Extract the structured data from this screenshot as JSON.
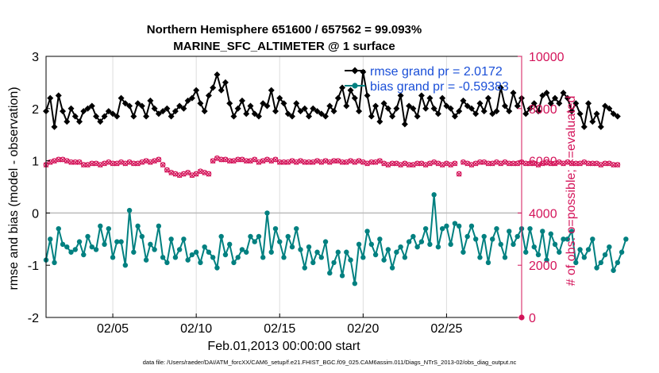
{
  "chart_data": {
    "type": "line",
    "title": "Northern Hemisphere 651600 / 657562 = 99.093%",
    "subtitle": "MARINE_SFC_ALTIMETER @ 1 surface",
    "xlabel": "Feb.01,2013 00:00:00 start",
    "ylabel": "rmse and bias (model - observation)",
    "y2label": "# of obs: o=possible; ×=evaluated",
    "xlim": [
      1,
      29.5
    ],
    "ylim": [
      -2,
      3
    ],
    "y2lim": [
      0,
      10000
    ],
    "x_ticks": [
      5,
      10,
      15,
      20,
      25
    ],
    "x_tick_labels": [
      "02/05",
      "02/10",
      "02/15",
      "02/20",
      "02/25"
    ],
    "y_ticks": [
      -2,
      -1,
      0,
      1,
      2,
      3
    ],
    "y_tick_labels": [
      "-2",
      "-1",
      "0",
      "1",
      "2",
      "3"
    ],
    "y2_ticks": [
      0,
      2000,
      4000,
      6000,
      8000,
      10000
    ],
    "y2_tick_labels": [
      "0",
      "2000",
      "4000",
      "6000",
      "8000",
      "10000"
    ],
    "grid": "vertical",
    "zero_line": 0,
    "legend_position": "top-right",
    "footer": "data file: /Users/raeder/DAI/ATM_forcXX/CAM6_setup/f.e21.FHIST_BGC.f09_025.CAM6assim.011/Diags_NTrS_2013-02/obs_diag_output.nc",
    "x_start": 1.0,
    "x_step": 0.25,
    "series": [
      {
        "name": "rmse",
        "legend": "rmse grand pr = 2.0172",
        "color": "#000000",
        "marker": "diamond",
        "axis": "left",
        "values": [
          1.95,
          2.2,
          1.65,
          2.25,
          1.95,
          1.75,
          2.0,
          1.85,
          1.75,
          1.95,
          2.0,
          2.05,
          1.85,
          1.75,
          1.85,
          1.95,
          1.9,
          1.85,
          2.2,
          2.1,
          2.05,
          1.85,
          2.1,
          2.05,
          1.85,
          2.15,
          2.0,
          1.9,
          1.95,
          2.0,
          1.85,
          1.95,
          2.05,
          2.0,
          2.15,
          2.2,
          2.35,
          2.1,
          1.95,
          2.25,
          2.4,
          2.65,
          2.35,
          2.5,
          2.1,
          1.85,
          2.0,
          2.15,
          1.9,
          2.05,
          1.9,
          1.85,
          2.1,
          2.05,
          2.35,
          1.95,
          2.2,
          2.1,
          1.9,
          1.85,
          2.1,
          1.95,
          2.0,
          1.85,
          2.0,
          1.95,
          1.9,
          1.85,
          2.05,
          1.95,
          2.2,
          2.4,
          2.05,
          2.35,
          2.2,
          1.95,
          2.7,
          2.25,
          1.85,
          2.05,
          1.75,
          2.1,
          2.0,
          1.85,
          2.0,
          2.25,
          1.7,
          2.05,
          2.0,
          1.85,
          2.25,
          2.0,
          2.2,
          2.0,
          1.9,
          2.2,
          2.05,
          2.0,
          1.85,
          1.95,
          2.15,
          2.05,
          2.0,
          1.9,
          2.1,
          1.95,
          2.2,
          1.9,
          1.95,
          2.4,
          2.05,
          1.95,
          2.3,
          2.05,
          2.2,
          1.9,
          2.0,
          2.1,
          1.95,
          2.25,
          2.3,
          2.1,
          2.2,
          2.1,
          2.3,
          2.2,
          1.95,
          2.1,
          1.9,
          1.65,
          2.1,
          1.75,
          1.9,
          1.65,
          2.05,
          2.0,
          1.9,
          1.85
        ]
      },
      {
        "name": "bias",
        "legend": "bias grand pr = -0.59383",
        "color": "#008080",
        "marker": "circle",
        "axis": "left",
        "values": [
          -0.9,
          -0.5,
          -0.95,
          -0.3,
          -0.6,
          -0.65,
          -0.75,
          -0.7,
          -0.55,
          -0.8,
          -0.45,
          -0.65,
          -0.7,
          -0.25,
          -0.6,
          -0.3,
          -0.85,
          -0.55,
          -0.55,
          -1.0,
          0.05,
          -0.75,
          -0.25,
          -0.45,
          -0.9,
          -0.6,
          -0.7,
          -0.25,
          -0.85,
          -0.95,
          -0.5,
          -0.85,
          -0.7,
          -0.5,
          -0.9,
          -0.8,
          -0.75,
          -0.95,
          -0.65,
          -0.75,
          -0.85,
          -1.05,
          -0.45,
          -0.8,
          -0.6,
          -0.95,
          -0.85,
          -0.7,
          -0.75,
          -0.45,
          -0.55,
          -0.45,
          -0.85,
          0.0,
          -0.75,
          -0.3,
          -0.55,
          -0.85,
          -0.45,
          -0.65,
          -0.3,
          -0.7,
          -1.05,
          -0.65,
          -0.95,
          -0.75,
          -0.85,
          -0.55,
          -1.15,
          -0.95,
          -0.75,
          -1.2,
          -0.75,
          -0.9,
          -1.35,
          -0.6,
          -0.85,
          -0.35,
          -0.6,
          -0.8,
          -0.5,
          -0.9,
          -0.7,
          -1.05,
          -0.75,
          -0.65,
          -0.85,
          -0.55,
          -0.45,
          -0.65,
          -0.55,
          -0.3,
          -0.6,
          0.35,
          -0.65,
          -0.3,
          -0.25,
          -0.6,
          -0.2,
          -0.25,
          -0.75,
          -0.45,
          -0.25,
          -0.5,
          -0.85,
          -0.45,
          -0.95,
          -0.5,
          -0.3,
          -0.6,
          -0.85,
          -0.35,
          -0.6,
          -0.45,
          -0.3,
          -0.75,
          -0.3,
          -0.65,
          -0.8,
          -0.35,
          -0.9,
          -0.4,
          -0.6,
          -0.75,
          -0.5,
          -0.5,
          -0.35,
          -0.95,
          -0.7,
          -0.85,
          -0.7,
          -0.5,
          -1.05,
          -0.95,
          -0.8,
          -0.65,
          -1.1,
          -0.95,
          -0.75,
          -0.5
        ]
      },
      {
        "name": "nposs",
        "legend": "",
        "color": "#d4145a",
        "marker": "circle-open",
        "axis": "right",
        "values": [
          5850,
          5950,
          6000,
          6050,
          6050,
          6000,
          5950,
          5950,
          5950,
          5850,
          5850,
          5900,
          5900,
          5850,
          5900,
          5950,
          5900,
          5900,
          5950,
          5900,
          5950,
          5900,
          5900,
          5950,
          6000,
          5950,
          6000,
          6050,
          5850,
          5650,
          5550,
          5500,
          5450,
          5500,
          5550,
          5450,
          5500,
          5600,
          5550,
          5500,
          6000,
          6100,
          6050,
          6050,
          6000,
          6000,
          6050,
          6050,
          6000,
          6000,
          6050,
          5950,
          6000,
          6050,
          6000,
          6050,
          5950,
          5950,
          5950,
          6000,
          5950,
          6000,
          5950,
          5950,
          5950,
          6000,
          5950,
          6000,
          5950,
          6000,
          6000,
          5950,
          5950,
          6000,
          5950,
          6000,
          5950,
          5900,
          5950,
          5950,
          6000,
          5900,
          5850,
          5900,
          5900,
          5850,
          5900,
          5850,
          5850,
          5900,
          5900,
          5850,
          5900,
          5950,
          5900,
          5850,
          5900,
          5850,
          5900,
          5500,
          5950,
          5900,
          5850,
          5900,
          5950,
          5950,
          5900,
          5900,
          5950,
          5900,
          5950,
          5900,
          5900,
          5900,
          5950,
          5900,
          5900,
          5900,
          5850,
          5900,
          5950,
          5900,
          5900,
          5950,
          5900,
          5950,
          5900,
          5900,
          5900,
          5950,
          5900,
          5900,
          5900,
          5850,
          5900,
          5900,
          5850,
          5850
        ]
      },
      {
        "name": "nused",
        "legend": "",
        "color": "#d4145a",
        "marker": "cross",
        "axis": "right",
        "values": [
          5840,
          5940,
          5990,
          6040,
          6040,
          5990,
          5940,
          5940,
          5940,
          5840,
          5840,
          5890,
          5890,
          5840,
          5890,
          5940,
          5890,
          5890,
          5940,
          5890,
          5940,
          5890,
          5890,
          5940,
          5990,
          5940,
          5990,
          6040,
          5840,
          5640,
          5540,
          5490,
          5440,
          5490,
          5540,
          5440,
          5490,
          5590,
          5540,
          5490,
          5990,
          6090,
          6040,
          6040,
          5990,
          5990,
          6040,
          6040,
          5990,
          5990,
          6040,
          5940,
          5990,
          6040,
          5990,
          6040,
          5940,
          5940,
          5940,
          5990,
          5940,
          5990,
          5940,
          5940,
          5940,
          5990,
          5940,
          5990,
          5940,
          5990,
          5990,
          5940,
          5940,
          5990,
          5940,
          5990,
          5940,
          5890,
          5940,
          5940,
          5990,
          5890,
          5840,
          5890,
          5890,
          5840,
          5890,
          5840,
          5840,
          5890,
          5890,
          5840,
          5890,
          5940,
          5890,
          5840,
          5890,
          5840,
          5890,
          5490,
          5940,
          5890,
          5840,
          5890,
          5940,
          5940,
          5890,
          5890,
          5940,
          5890,
          5940,
          5890,
          5890,
          5890,
          5940,
          5890,
          5890,
          5890,
          5840,
          5890,
          5940,
          5890,
          5890,
          5940,
          5890,
          5940,
          5890,
          5890,
          5890,
          5940,
          5890,
          5890,
          5890,
          5840,
          5890,
          5890,
          5840,
          5840
        ]
      }
    ],
    "annotations": [
      {
        "name": "zero-obs-marker",
        "x": 29.5,
        "y2": 0
      }
    ]
  }
}
